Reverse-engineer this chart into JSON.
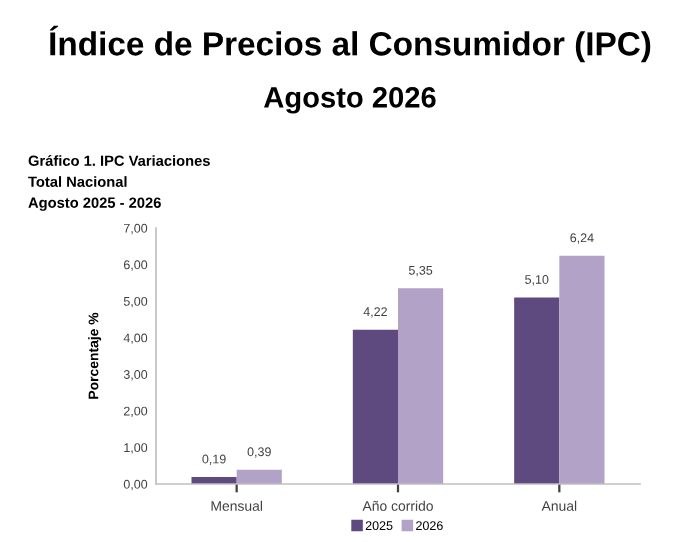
{
  "chart_data": {
    "type": "bar",
    "title": "Índice de Precios al Consumidor (IPC)",
    "subtitle": "Agosto 2026",
    "annotations": [
      "Gráfico 1. IPC Variaciones",
      "Total Nacional",
      "Agosto 2025 - 2026"
    ],
    "ylabel": "Porcentaje %",
    "categories": [
      "Mensual",
      "Año corrido",
      "Anual"
    ],
    "series": [
      {
        "name": "2025",
        "color": "#5e4a7e",
        "values": [
          0.19,
          4.22,
          5.1
        ],
        "value_labels": [
          "0,19",
          "4,22",
          "5,10"
        ]
      },
      {
        "name": "2026",
        "color": "#b3a2c8",
        "values": [
          0.39,
          5.35,
          6.24
        ],
        "value_labels": [
          "0,39",
          "5,35",
          "6,24"
        ]
      }
    ],
    "ylim": [
      0,
      7
    ],
    "yticks": [
      {
        "value": 0,
        "label": "0,00"
      },
      {
        "value": 1,
        "label": "1,00"
      },
      {
        "value": 2,
        "label": "2,00"
      },
      {
        "value": 3,
        "label": "3,00"
      },
      {
        "value": 4,
        "label": "4,00"
      },
      {
        "value": 5,
        "label": "5,00"
      },
      {
        "value": 6,
        "label": "6,00"
      },
      {
        "value": 7,
        "label": "7,00"
      }
    ],
    "grid": false,
    "legend": "bottom"
  }
}
